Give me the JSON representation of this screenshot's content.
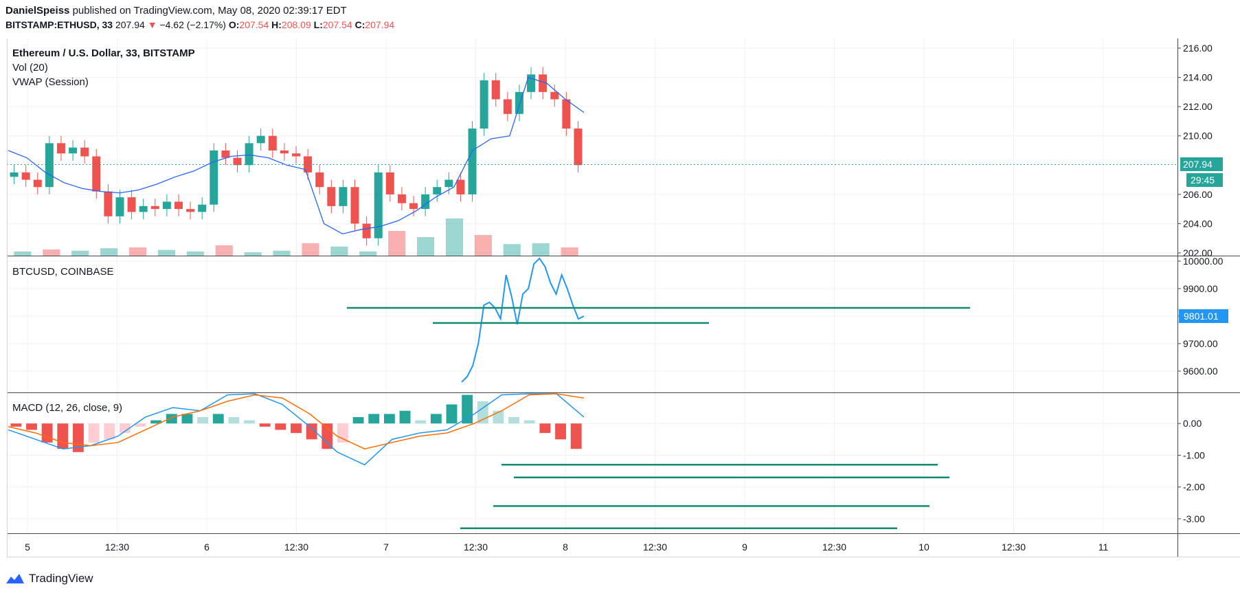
{
  "header": {
    "author": "DanielSpeiss",
    "published_text": "published on TradingView.com, May 08, 2020 02:39:17 EDT",
    "symbol": "BITSTAMP:ETHUSD, 33",
    "last": "207.94",
    "change": "−4.62 (−2.17%)",
    "open_label": "O:",
    "open": "207.54",
    "high_label": "H:",
    "high": "208.09",
    "low_label": "L:",
    "low": "207.54",
    "close_label": "C:",
    "close": "207.94"
  },
  "colors": {
    "up": "#26a69a",
    "down": "#ef5350",
    "vwap": "#2962ff",
    "btc_line": "#2196f3",
    "macd_line": "#2196f3",
    "signal_line": "#ff6d00",
    "price_tag": "#26a69a",
    "btc_tag": "#2196f3",
    "drawn_lines": "#138a6e"
  },
  "footer": {
    "brand": "TradingView"
  },
  "chart_data": [
    {
      "type": "candlestick",
      "title": "Ethereum / U.S. Dollar, 33, BITSTAMP",
      "indicators": [
        "Vol (20)",
        "VWAP (Session)"
      ],
      "ylim": [
        202,
        216
      ],
      "yticks": [
        "216.00",
        "214.00",
        "212.00",
        "210.00",
        "206.00",
        "204.00",
        "202.00"
      ],
      "last_price": "207.94",
      "countdown": "29:45",
      "x_labels": [
        "5",
        "12:30",
        "6",
        "12:30",
        "7",
        "12:30",
        "8",
        "12:30",
        "9",
        "12:30",
        "10",
        "12:30",
        "11"
      ],
      "close_series": [
        207.5,
        207.0,
        206.5,
        209.5,
        208.8,
        209.2,
        208.6,
        206.2,
        204.5,
        205.8,
        204.8,
        205.2,
        205.0,
        205.5,
        205.0,
        204.8,
        205.3,
        209.0,
        208.5,
        208.0,
        209.5,
        210.0,
        209.0,
        208.8,
        208.6,
        207.5,
        206.5,
        205.2,
        206.5,
        204.0,
        203.0,
        207.5,
        206.0,
        205.4,
        205.0,
        206.0,
        206.5,
        207.0,
        206.0,
        210.5,
        213.8,
        212.5,
        211.5,
        213.0,
        214.2,
        213.0,
        212.5,
        210.5,
        208.0
      ],
      "vwap_series": [
        209.0,
        208.5,
        207.5,
        206.8,
        206.4,
        206.2,
        206.1,
        206.3,
        206.7,
        207.2,
        207.6,
        208.2,
        208.6,
        208.7,
        208.5,
        208.0,
        207.7,
        204.0,
        203.3,
        203.6,
        203.8,
        204.2,
        204.9,
        205.8,
        206.5,
        209.0,
        209.8,
        210.0,
        214.0,
        213.6,
        212.5,
        211.6
      ],
      "volume": [
        0.1,
        0.15,
        0.12,
        0.18,
        0.2,
        0.14,
        0.1,
        0.25,
        0.08,
        0.12,
        0.3,
        0.22,
        0.1,
        0.6,
        0.45,
        0.9,
        0.5,
        0.28,
        0.3,
        0.2
      ]
    },
    {
      "type": "line",
      "title": "BTCUSD, COINBASE",
      "ylim": [
        9550,
        10000
      ],
      "yticks": [
        "10000.00",
        "9900.00",
        "9800.00",
        "9700.00",
        "9600.00"
      ],
      "last_price": "9801.01",
      "values": [
        9560,
        9580,
        9620,
        9700,
        9840,
        9850,
        9830,
        9790,
        9950,
        9870,
        9770,
        9880,
        9900,
        9990,
        10010,
        9980,
        9920,
        9880,
        9950,
        9900,
        9840,
        9790,
        9800
      ],
      "horizontal_lines": [
        9830,
        9775
      ]
    },
    {
      "type": "macd",
      "title": "MACD (12, 26, close, 9)",
      "ylim": [
        -3.5,
        1
      ],
      "yticks": [
        "0.00",
        "-1.00",
        "-2.00",
        "-3.00"
      ],
      "histogram": [
        -0.1,
        -0.2,
        -0.6,
        -0.8,
        -0.9,
        -0.6,
        -0.5,
        -0.3,
        -0.1,
        0.1,
        0.3,
        0.3,
        0.2,
        0.3,
        0.2,
        0.1,
        -0.1,
        -0.2,
        -0.3,
        -0.5,
        -0.8,
        -0.6,
        0.2,
        0.3,
        0.3,
        0.4,
        0.1,
        0.3,
        0.6,
        0.9,
        0.7,
        0.4,
        0.2,
        0.1,
        -0.3,
        -0.5,
        -0.8
      ],
      "macd": [
        -0.2,
        -0.5,
        -0.8,
        -0.7,
        -0.4,
        0.2,
        0.5,
        0.4,
        0.9,
        1.0,
        0.6,
        -0.1,
        -0.9,
        -1.3,
        -0.5,
        -0.3,
        -0.2,
        0.3,
        0.9,
        1.4,
        1.0,
        0.2
      ],
      "signal": [
        -0.1,
        -0.3,
        -0.6,
        -0.7,
        -0.6,
        -0.2,
        0.2,
        0.4,
        0.7,
        0.9,
        0.8,
        0.3,
        -0.4,
        -0.8,
        -0.6,
        -0.4,
        -0.3,
        0.0,
        0.4,
        0.9,
        1.1,
        0.8
      ],
      "horizontal_lines": [
        -1.3,
        -1.7,
        -2.6,
        -3.3
      ]
    }
  ]
}
